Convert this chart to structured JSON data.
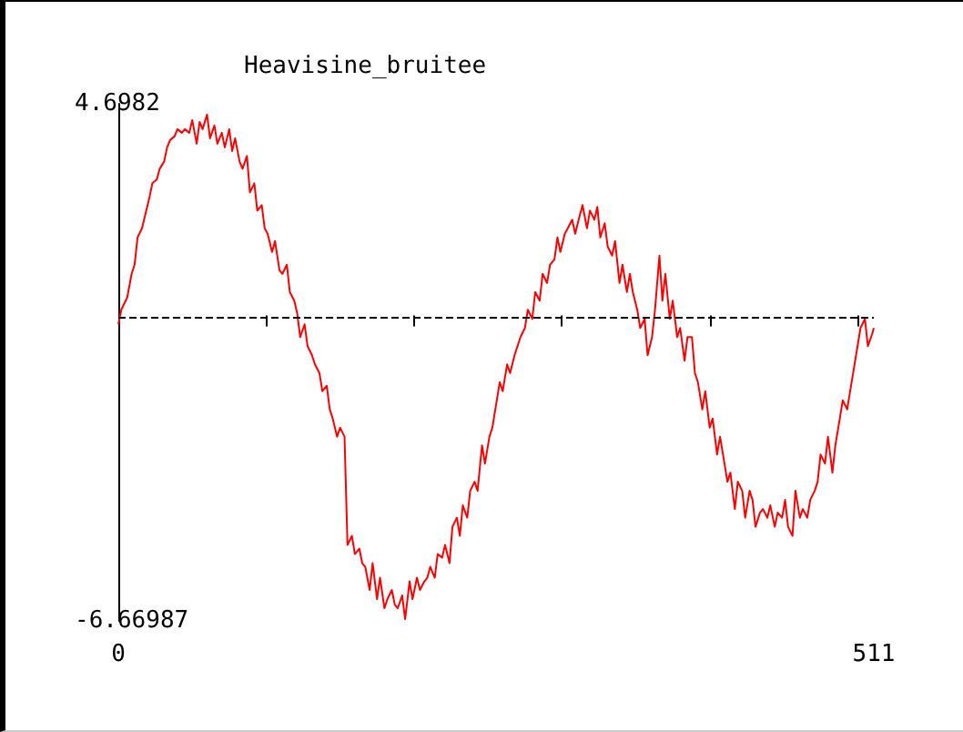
{
  "chart_data": {
    "type": "line",
    "title": "Heavisine_bruitee",
    "x": [
      0,
      2,
      6,
      9,
      11,
      13,
      16,
      18,
      21,
      23,
      26,
      28,
      31,
      33,
      35,
      38,
      40,
      43,
      45,
      48,
      50,
      53,
      55,
      57,
      60,
      62,
      65,
      67,
      70,
      72,
      75,
      77,
      79,
      82,
      84,
      87,
      89,
      92,
      94,
      97,
      99,
      101,
      104,
      106,
      109,
      111,
      114,
      116,
      119,
      121,
      123,
      126,
      128,
      131,
      133,
      136,
      138,
      141,
      143,
      145,
      148,
      150,
      153,
      155,
      158,
      160,
      163,
      165,
      167,
      170,
      172,
      175,
      177,
      180,
      182,
      185,
      187,
      189,
      192,
      194,
      197,
      199,
      202,
      204,
      207,
      209,
      211,
      214,
      216,
      219,
      221,
      224,
      226,
      229,
      231,
      233,
      236,
      238,
      241,
      243,
      246,
      248,
      251,
      253,
      255,
      258,
      260,
      263,
      265,
      268,
      270,
      272,
      275,
      277,
      280,
      282,
      285,
      287,
      290,
      292,
      295,
      297,
      299,
      302,
      304,
      307,
      309,
      312,
      314,
      317,
      319,
      322,
      324,
      326,
      329,
      331,
      334,
      336,
      339,
      341,
      344,
      346,
      348,
      351,
      353,
      356,
      358,
      361,
      363,
      366,
      368,
      370,
      373,
      375,
      378,
      380,
      383,
      385,
      388,
      390,
      392,
      395,
      397,
      400,
      402,
      405,
      407,
      410,
      412,
      414,
      417,
      419,
      422,
      424,
      427,
      429,
      431,
      434,
      436,
      439,
      441,
      444,
      446,
      449,
      451,
      453,
      456,
      458,
      461,
      463,
      466,
      468,
      471,
      473,
      475,
      478,
      480,
      483,
      485,
      488,
      490,
      493,
      495,
      498,
      500,
      502,
      505,
      507,
      510,
      511
    ],
    "series": [
      {
        "color": "#ff0000",
        "values": [
          -0.15,
          0.17,
          0.44,
          0.96,
          1.16,
          1.76,
          1.96,
          2.23,
          2.63,
          2.95,
          3.03,
          3.27,
          3.43,
          3.74,
          3.9,
          3.98,
          4.14,
          4.06,
          4.14,
          4.06,
          4.34,
          3.82,
          4.3,
          4.14,
          4.46,
          3.94,
          4.22,
          3.82,
          4.06,
          3.74,
          4.14,
          3.66,
          3.94,
          3.43,
          3.27,
          3.55,
          2.75,
          2.95,
          2.35,
          2.47,
          1.96,
          1.84,
          1.44,
          1.68,
          1.04,
          0.96,
          1.16,
          0.56,
          0.37,
          0.09,
          -0.43,
          -0.15,
          -0.63,
          -0.83,
          -1.03,
          -1.22,
          -1.62,
          -1.5,
          -2.02,
          -2.22,
          -2.62,
          -2.42,
          -2.62,
          -5,
          -4.8,
          -5.2,
          -5.08,
          -5.4,
          -5.48,
          -5.99,
          -5.4,
          -6.19,
          -5.72,
          -6.39,
          -6.19,
          -5.99,
          -6.31,
          -6.39,
          -6.11,
          -6.63,
          -5.8,
          -6.19,
          -5.72,
          -5.99,
          -5.8,
          -5.72,
          -5.48,
          -5.72,
          -5.2,
          -5.28,
          -5,
          -5.4,
          -4.6,
          -4.4,
          -4.8,
          -4.13,
          -4.4,
          -3.81,
          -3.61,
          -3.81,
          -2.81,
          -3.21,
          -2.62,
          -2.42,
          -2.02,
          -1.42,
          -1.62,
          -1.03,
          -1.22,
          -0.83,
          -0.63,
          -0.43,
          -0.23,
          0.17,
          -0.03,
          0.56,
          0.37,
          0.96,
          0.76,
          1.16,
          1.28,
          1.76,
          1.44,
          1.84,
          1.96,
          2.15,
          1.84,
          2.23,
          2.47,
          1.96,
          2.35,
          2.15,
          2.43,
          1.76,
          2.07,
          1.56,
          1.36,
          1.68,
          0.76,
          1.16,
          0.56,
          0.96,
          0.56,
          0.17,
          -0.23,
          -0.03,
          -0.83,
          -0.43,
          0.17,
          1.36,
          0.37,
          0.96,
          -0.03,
          0.37,
          -0.43,
          -0.23,
          -0.95,
          -0.43,
          -0.43,
          -1.22,
          -1.42,
          -2.02,
          -1.62,
          -2.42,
          -2.22,
          -3.01,
          -2.62,
          -3.21,
          -3.61,
          -3.41,
          -4.21,
          -3.61,
          -3.81,
          -4.4,
          -3.81,
          -4.01,
          -4.6,
          -4.29,
          -4.21,
          -4.4,
          -4.13,
          -4.6,
          -4.29,
          -4.4,
          -4.01,
          -4.6,
          -4.8,
          -3.81,
          -4.4,
          -4.21,
          -4.4,
          -4.01,
          -3.81,
          -3.61,
          -3.01,
          -3.21,
          -2.62,
          -3.41,
          -2.81,
          -2.22,
          -1.82,
          -2.02,
          -1.62,
          -1.03,
          -0.63,
          -0.23,
          -0.03,
          -0.63,
          -0.35,
          -0.23
        ]
      }
    ],
    "xlim": [
      0,
      511
    ],
    "xticks": [
      0,
      {
        "value": 100,
        "label": null
      },
      {
        "value": 200,
        "label": null
      },
      {
        "value": 300,
        "label": null
      },
      {
        "value": 400,
        "label": null
      },
      {
        "value": 500,
        "label": null
      },
      511
    ],
    "ylim": [
      -6.66987,
      4.6982
    ],
    "yticks": [
      -6.66987,
      4.6982
    ],
    "ref_lines": [
      {
        "axis": "y",
        "value": 0,
        "line_style": "dashed",
        "color": "#000000"
      }
    ],
    "grid": false,
    "marker": "none",
    "line_style": "solid"
  }
}
